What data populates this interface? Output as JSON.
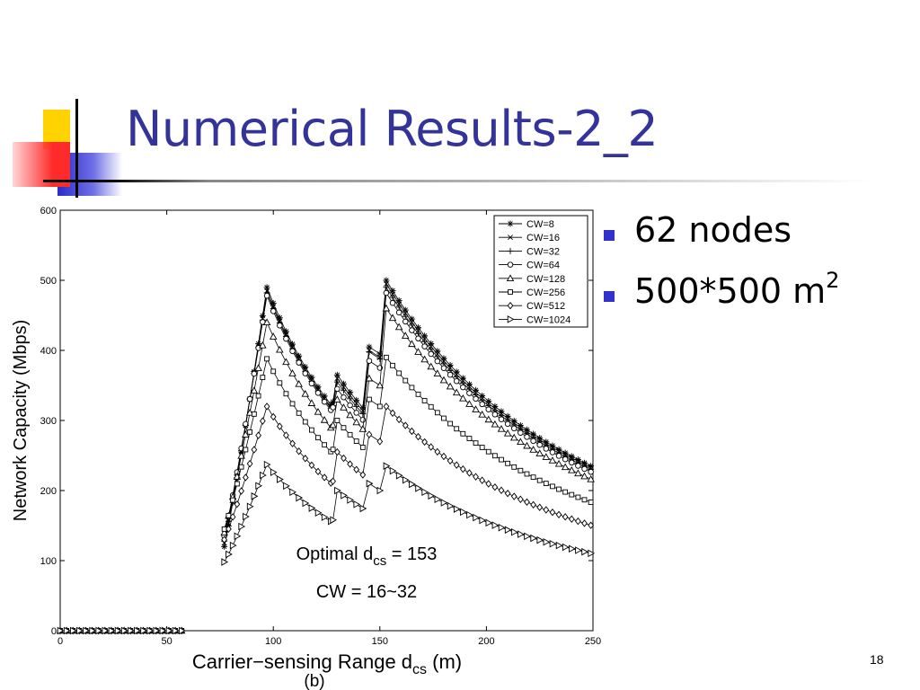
{
  "slide": {
    "title": "Numerical Results-2_2",
    "page_number": "18",
    "colors": {
      "title": "#333399",
      "bullet": "#3333cc",
      "accent_yellow": "#ffd200",
      "accent_blue": "#3333cc",
      "accent_red": "#ff3333"
    },
    "bullets": [
      {
        "text": "62 nodes",
        "sup": ""
      },
      {
        "text": "500*500 m",
        "sup": "2"
      }
    ]
  },
  "chart_data": {
    "type": "line",
    "title": "",
    "xlabel": "Carrier−sensing Range d",
    "xlabel_sub": "cs",
    "xlabel_unit": " (m)",
    "ylabel": "Network Capacity (Mbps)",
    "caption": "(b)",
    "xlim": [
      0,
      250
    ],
    "ylim": [
      0,
      600
    ],
    "xticks": [
      0,
      50,
      100,
      150,
      200,
      250
    ],
    "yticks": [
      0,
      100,
      200,
      300,
      400,
      500,
      600
    ],
    "grid": false,
    "legend": "top-right",
    "annotations": [
      {
        "main": "Optimal d",
        "sub": "cs",
        "rest": " = 153"
      },
      {
        "main": "CW = 16~32",
        "sub": "",
        "rest": ""
      }
    ],
    "zero_region": {
      "x_start": 0,
      "x_end": 58,
      "step": 3,
      "value": 0
    },
    "segments": [
      [
        77,
        97
      ],
      [
        97,
        128
      ],
      [
        128,
        143
      ],
      [
        143,
        153
      ],
      [
        153,
        250
      ]
    ],
    "step": 3,
    "series": [
      {
        "name": "CW=8",
        "marker": "asterisk",
        "peaks": [
          490,
          365,
          405,
          500
        ],
        "start": 120
      },
      {
        "name": "CW=16",
        "marker": "x",
        "peaks": [
          485,
          360,
          400,
          495
        ],
        "start": 125
      },
      {
        "name": "CW=32",
        "marker": "plus",
        "peaks": [
          482,
          355,
          398,
          490
        ],
        "start": 128
      },
      {
        "name": "CW=64",
        "marker": "circle",
        "peaks": [
          478,
          345,
          385,
          482
        ],
        "start": 135
      },
      {
        "name": "CW=128",
        "marker": "triangle-up",
        "peaks": [
          440,
          330,
          360,
          460
        ],
        "start": 140
      },
      {
        "name": "CW=256",
        "marker": "square",
        "peaks": [
          388,
          300,
          330,
          390
        ],
        "start": 145
      },
      {
        "name": "CW=512",
        "marker": "diamond",
        "peaks": [
          320,
          255,
          280,
          320
        ],
        "start": 130
      },
      {
        "name": "CW=1024",
        "marker": "triangle-right",
        "peaks": [
          237,
          200,
          210,
          235
        ],
        "start": 98
      }
    ]
  }
}
